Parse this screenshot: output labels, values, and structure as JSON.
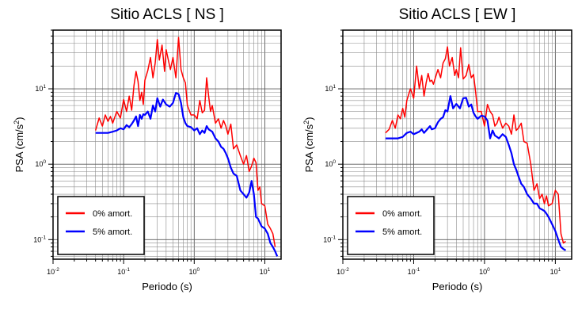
{
  "chart_data": [
    {
      "type": "line",
      "title": "Sitio ACLS [ NS ]",
      "xlabel": "Periodo (s)",
      "ylabel": "PSA (cm/s2)",
      "ylabel_base": "PSA (cm/s",
      "ylabel_sup": "2",
      "ylabel_tail": ")",
      "xscale": "log",
      "yscale": "log",
      "xlim": [
        0.01,
        17
      ],
      "ylim": [
        0.055,
        60
      ],
      "xticks": [
        {
          "base": "10",
          "exp": "-2"
        },
        {
          "base": "10",
          "exp": "-1"
        },
        {
          "base": "10",
          "exp": "0"
        },
        {
          "base": "10",
          "exp": "1"
        }
      ],
      "yticks": [
        {
          "base": "10",
          "exp": "-1"
        },
        {
          "base": "10",
          "exp": "0"
        },
        {
          "base": "10",
          "exp": "1"
        }
      ],
      "grid": true,
      "legend_position": "bottom-left",
      "series": [
        {
          "name": "0% amort.",
          "color": "#ff0000",
          "x": [
            0.04,
            0.045,
            0.05,
            0.055,
            0.06,
            0.065,
            0.07,
            0.08,
            0.09,
            0.1,
            0.11,
            0.12,
            0.13,
            0.14,
            0.15,
            0.16,
            0.17,
            0.18,
            0.19,
            0.2,
            0.22,
            0.24,
            0.26,
            0.28,
            0.3,
            0.32,
            0.35,
            0.38,
            0.4,
            0.43,
            0.46,
            0.5,
            0.55,
            0.6,
            0.65,
            0.7,
            0.75,
            0.8,
            0.9,
            1.0,
            1.1,
            1.2,
            1.3,
            1.4,
            1.5,
            1.6,
            1.7,
            1.8,
            2.0,
            2.2,
            2.4,
            2.6,
            2.8,
            3.0,
            3.3,
            3.6,
            4.0,
            4.5,
            5.0,
            5.5,
            6.0,
            6.5,
            7.0,
            7.5,
            8.0,
            8.5,
            9.0,
            10.0,
            11.0,
            12.0,
            13.0,
            14.0
          ],
          "y": [
            2.8,
            4.1,
            3.2,
            4.5,
            3.7,
            4.3,
            3.5,
            5.0,
            4.1,
            7.2,
            5.0,
            8.0,
            5.2,
            11.0,
            17.0,
            12.5,
            7.0,
            9.0,
            6.2,
            13.0,
            17.5,
            26.0,
            14.0,
            22.0,
            45.0,
            24.0,
            38.0,
            17.0,
            33.0,
            24.0,
            18.0,
            26.0,
            14.0,
            48.0,
            18.0,
            14.0,
            12.0,
            6.0,
            4.5,
            4.5,
            4.0,
            7.0,
            4.8,
            5.2,
            14.0,
            8.0,
            5.0,
            6.0,
            3.5,
            4.0,
            3.0,
            3.8,
            3.2,
            2.5,
            3.4,
            1.6,
            1.8,
            1.3,
            1.0,
            1.3,
            0.8,
            0.95,
            1.2,
            1.05,
            0.45,
            0.5,
            0.3,
            0.28,
            0.16,
            0.14,
            0.12,
            0.08
          ]
        },
        {
          "name": "5% amort.",
          "color": "#0000ff",
          "x": [
            0.04,
            0.05,
            0.06,
            0.07,
            0.08,
            0.09,
            0.1,
            0.11,
            0.12,
            0.13,
            0.14,
            0.15,
            0.16,
            0.17,
            0.18,
            0.19,
            0.2,
            0.22,
            0.24,
            0.26,
            0.28,
            0.3,
            0.33,
            0.36,
            0.4,
            0.45,
            0.5,
            0.55,
            0.6,
            0.65,
            0.7,
            0.75,
            0.8,
            0.9,
            1.0,
            1.1,
            1.2,
            1.3,
            1.4,
            1.5,
            1.6,
            1.8,
            2.0,
            2.2,
            2.4,
            2.6,
            2.8,
            3.0,
            3.3,
            3.6,
            4.0,
            4.5,
            5.0,
            5.5,
            6.0,
            6.5,
            7.0,
            7.5,
            8.0,
            9.0,
            10.0,
            11.0,
            12.0,
            13.0,
            14.0,
            15.0
          ],
          "y": [
            2.6,
            2.6,
            2.6,
            2.7,
            2.8,
            3.0,
            2.9,
            3.3,
            3.1,
            3.4,
            3.8,
            4.3,
            3.2,
            4.5,
            4.0,
            4.6,
            4.5,
            5.0,
            4.0,
            6.0,
            5.0,
            7.5,
            5.8,
            7.2,
            6.2,
            5.8,
            6.5,
            8.8,
            8.5,
            6.5,
            4.2,
            3.5,
            3.2,
            3.1,
            2.8,
            3.0,
            2.5,
            2.8,
            2.6,
            3.2,
            2.9,
            2.7,
            2.2,
            2.0,
            1.7,
            1.6,
            1.4,
            1.2,
            0.9,
            0.75,
            0.7,
            0.45,
            0.4,
            0.36,
            0.42,
            0.6,
            0.4,
            0.2,
            0.19,
            0.15,
            0.14,
            0.12,
            0.09,
            0.08,
            0.07,
            0.06
          ]
        }
      ]
    },
    {
      "type": "line",
      "title": "Sitio ACLS [ EW ]",
      "xlabel": "Periodo (s)",
      "ylabel": "PSA (cm/s2)",
      "ylabel_base": "PSA (cm/s",
      "ylabel_sup": "2",
      "ylabel_tail": ")",
      "xscale": "log",
      "yscale": "log",
      "xlim": [
        0.01,
        17
      ],
      "ylim": [
        0.055,
        60
      ],
      "xticks": [
        {
          "base": "10",
          "exp": "-2"
        },
        {
          "base": "10",
          "exp": "-1"
        },
        {
          "base": "10",
          "exp": "0"
        },
        {
          "base": "10",
          "exp": "1"
        }
      ],
      "yticks": [
        {
          "base": "10",
          "exp": "-1"
        },
        {
          "base": "10",
          "exp": "0"
        },
        {
          "base": "10",
          "exp": "1"
        }
      ],
      "grid": true,
      "legend_position": "bottom-left",
      "series": [
        {
          "name": "0% amort.",
          "color": "#ff0000",
          "x": [
            0.04,
            0.045,
            0.05,
            0.055,
            0.06,
            0.065,
            0.07,
            0.075,
            0.08,
            0.09,
            0.1,
            0.11,
            0.12,
            0.13,
            0.14,
            0.15,
            0.16,
            0.17,
            0.18,
            0.19,
            0.2,
            0.22,
            0.24,
            0.26,
            0.28,
            0.3,
            0.32,
            0.35,
            0.38,
            0.4,
            0.43,
            0.46,
            0.5,
            0.55,
            0.6,
            0.65,
            0.7,
            0.75,
            0.8,
            0.9,
            1.0,
            1.1,
            1.2,
            1.3,
            1.4,
            1.5,
            1.6,
            1.8,
            2.0,
            2.2,
            2.4,
            2.6,
            2.8,
            3.0,
            3.3,
            3.6,
            4.0,
            4.5,
            5.0,
            5.5,
            6.0,
            6.5,
            7.0,
            7.5,
            8.0,
            9.0,
            10.0,
            11.0,
            12.0,
            13.0,
            14.0
          ],
          "y": [
            2.6,
            2.9,
            3.8,
            3.0,
            4.5,
            4.0,
            5.5,
            4.2,
            7.0,
            10.0,
            7.5,
            20.0,
            10.0,
            15.0,
            8.0,
            12.0,
            16.0,
            12.5,
            13.0,
            11.5,
            13.5,
            18.0,
            14.0,
            22.0,
            25.0,
            36.0,
            20.0,
            26.0,
            15.0,
            18.0,
            14.0,
            35.0,
            13.5,
            15.0,
            21.0,
            14.0,
            15.5,
            9.0,
            5.0,
            5.0,
            3.2,
            6.2,
            5.0,
            4.5,
            3.2,
            3.5,
            4.2,
            3.0,
            3.5,
            3.2,
            2.5,
            4.5,
            2.8,
            3.0,
            3.5,
            2.0,
            1.9,
            1.0,
            0.45,
            0.55,
            0.35,
            0.4,
            0.3,
            0.38,
            0.28,
            0.3,
            0.45,
            0.4,
            0.12,
            0.09,
            0.095
          ]
        },
        {
          "name": "5% amort.",
          "color": "#0000ff",
          "x": [
            0.04,
            0.05,
            0.06,
            0.07,
            0.08,
            0.09,
            0.1,
            0.11,
            0.12,
            0.13,
            0.14,
            0.15,
            0.16,
            0.17,
            0.18,
            0.2,
            0.22,
            0.24,
            0.26,
            0.28,
            0.3,
            0.33,
            0.36,
            0.4,
            0.45,
            0.5,
            0.55,
            0.6,
            0.65,
            0.7,
            0.75,
            0.8,
            0.9,
            1.0,
            1.1,
            1.2,
            1.3,
            1.4,
            1.5,
            1.6,
            1.8,
            2.0,
            2.2,
            2.4,
            2.6,
            2.8,
            3.0,
            3.3,
            3.6,
            4.0,
            4.5,
            5.0,
            5.5,
            6.0,
            6.5,
            7.0,
            7.5,
            8.0,
            9.0,
            10.0,
            11.0,
            12.0,
            13.0,
            14.0
          ],
          "y": [
            2.2,
            2.2,
            2.2,
            2.3,
            2.6,
            2.7,
            2.5,
            2.6,
            2.7,
            2.9,
            2.6,
            2.8,
            3.0,
            3.2,
            2.9,
            3.0,
            3.6,
            4.0,
            4.2,
            5.2,
            5.0,
            8.0,
            5.5,
            6.3,
            5.5,
            7.5,
            7.6,
            5.8,
            6.2,
            4.8,
            4.3,
            4.0,
            4.4,
            4.3,
            3.8,
            2.2,
            2.8,
            2.4,
            2.3,
            2.2,
            2.5,
            2.3,
            1.8,
            1.4,
            1.0,
            0.85,
            0.7,
            0.55,
            0.5,
            0.4,
            0.35,
            0.3,
            0.3,
            0.26,
            0.25,
            0.24,
            0.22,
            0.2,
            0.16,
            0.13,
            0.1,
            0.08,
            0.075,
            0.072
          ]
        }
      ]
    }
  ]
}
